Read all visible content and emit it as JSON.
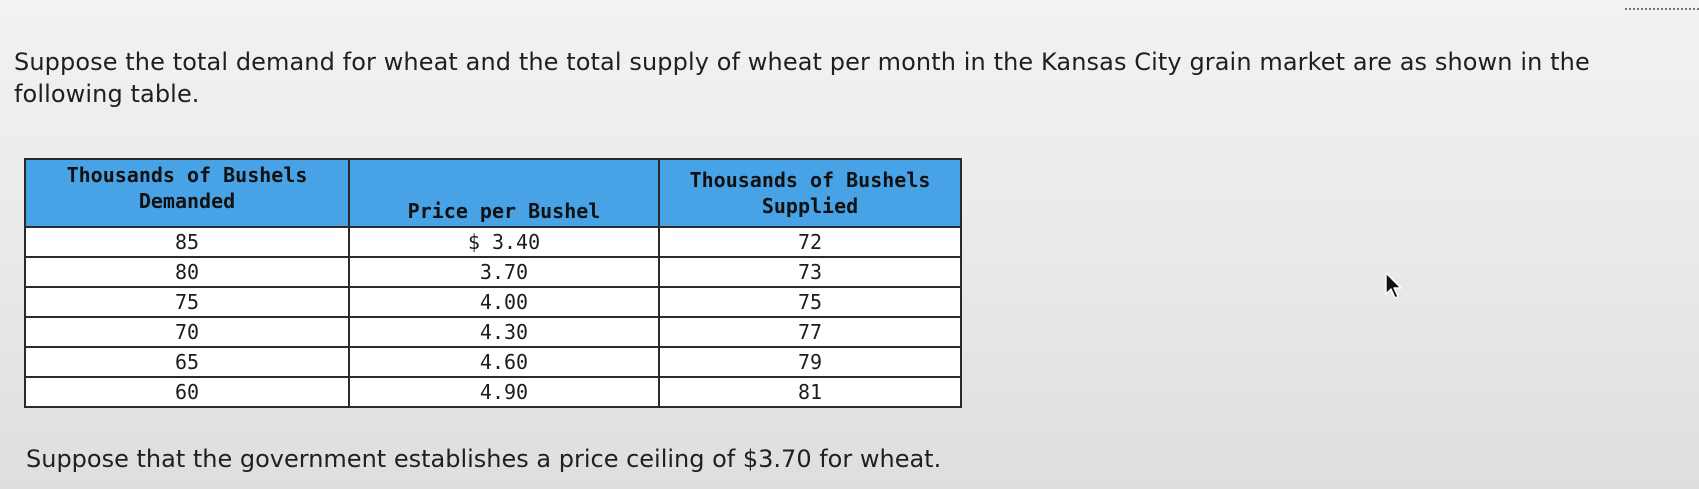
{
  "question": {
    "intro": "Suppose the total demand for wheat and the total supply of wheat per month in the Kansas City grain market are as shown in the following table.",
    "footer": "Suppose that the government establishes a price ceiling of $3.70 for wheat."
  },
  "table": {
    "headers": {
      "demanded": "Thousands of Bushels Demanded",
      "price": "Price per Bushel",
      "supplied": "Thousands of Bushels Supplied"
    },
    "rows": [
      {
        "demanded": "85",
        "price": "$ 3.40",
        "supplied": "72"
      },
      {
        "demanded": "80",
        "price": "3.70",
        "supplied": "73"
      },
      {
        "demanded": "75",
        "price": "4.00",
        "supplied": "75"
      },
      {
        "demanded": "70",
        "price": "4.30",
        "supplied": "77"
      },
      {
        "demanded": "65",
        "price": "4.60",
        "supplied": "79"
      },
      {
        "demanded": "60",
        "price": "4.90",
        "supplied": "81"
      }
    ]
  },
  "colors": {
    "header_bg": "#47a3e6",
    "cell_bg": "#ffffff",
    "border": "#2a2a2a"
  },
  "icons": {
    "cursor": "mouse-pointer-icon"
  }
}
